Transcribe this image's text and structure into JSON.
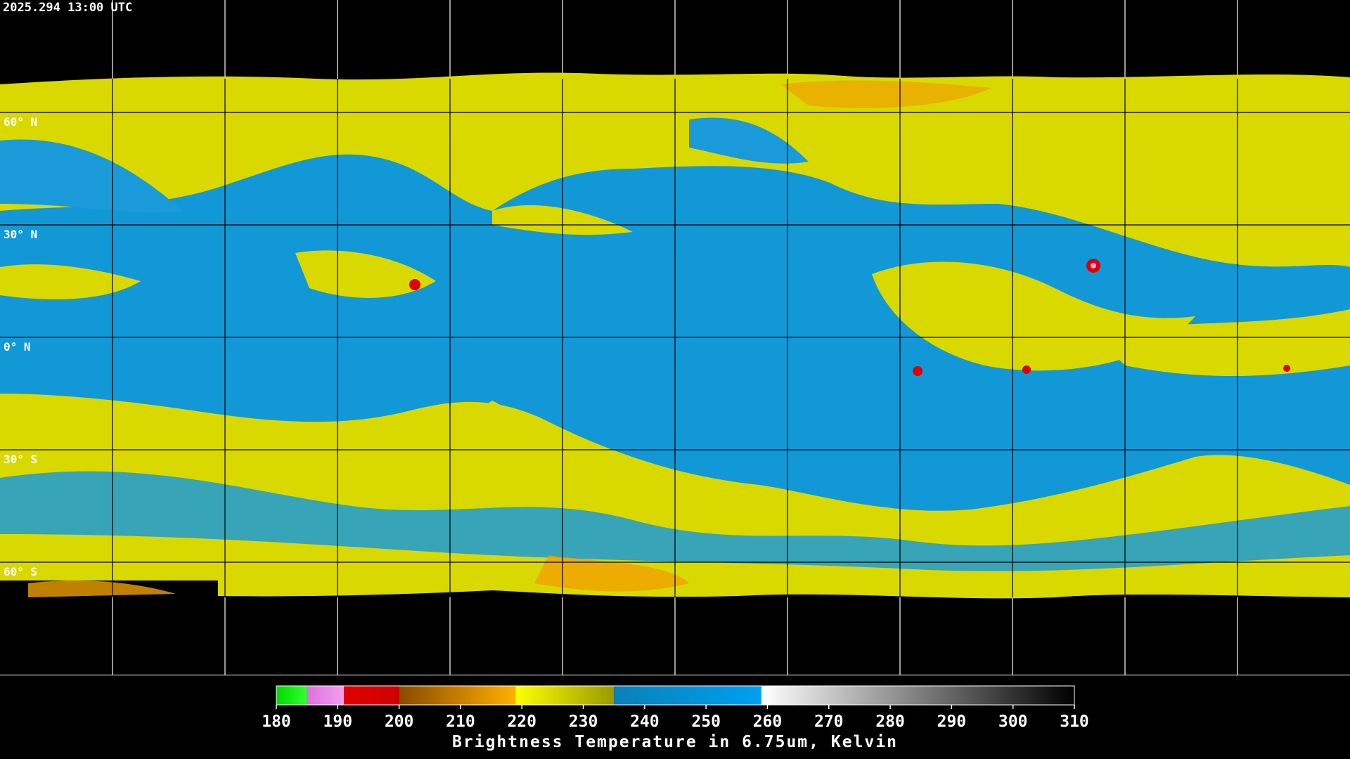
{
  "header": {
    "timestamp": "2025.294 13:00 UTC"
  },
  "map": {
    "lat_labels": [
      "60° N",
      "30° N",
      "0° N",
      "30° S",
      "60° S"
    ]
  },
  "colorbar": {
    "range": [
      180,
      310
    ],
    "ticks": [
      180,
      190,
      200,
      210,
      220,
      230,
      240,
      250,
      260,
      270,
      280,
      290,
      300,
      310
    ],
    "segments": [
      {
        "from": 180,
        "to": 185,
        "color_start": "#00d800",
        "color_end": "#33ff33"
      },
      {
        "from": 185,
        "to": 191,
        "color_start": "#e070e0",
        "color_end": "#f0a0f0"
      },
      {
        "from": 191,
        "to": 200,
        "color_start": "#e00000",
        "color_end": "#d00000"
      },
      {
        "from": 200,
        "to": 219,
        "color_start": "#8a4a00",
        "color_end": "#ffb000"
      },
      {
        "from": 219,
        "to": 235,
        "color_start": "#ffff00",
        "color_end": "#9a9a00"
      },
      {
        "from": 235,
        "to": 259,
        "color_start": "#0a80b8",
        "color_end": "#00a0f0"
      },
      {
        "from": 259,
        "to": 310,
        "color_start": "#ffffff",
        "color_end": "#000000"
      }
    ],
    "title": "Brightness Temperature in 6.75um, Kelvin"
  }
}
